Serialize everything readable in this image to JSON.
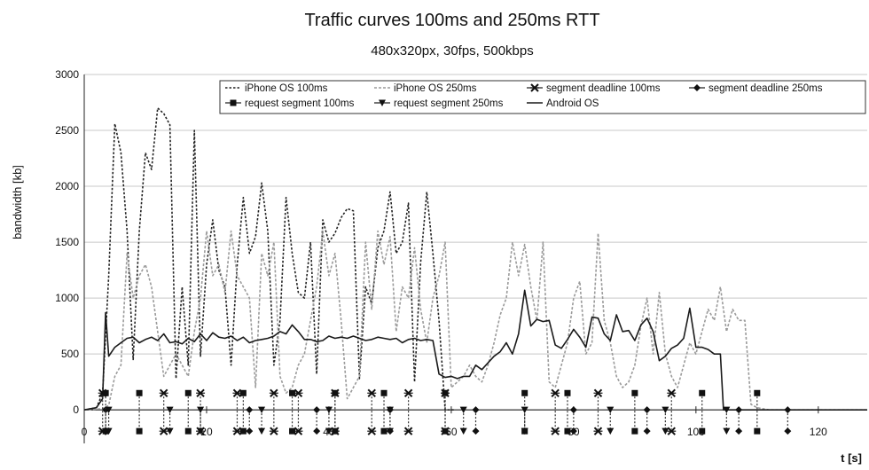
{
  "chart_data": {
    "type": "line",
    "title": "Traffic curves 100ms and 250ms RTT",
    "subtitle": "480x320px, 30fps, 500kbps",
    "xlabel": "t [s]",
    "ylabel": "bandwidth [kb]",
    "xlim": [
      0,
      128
    ],
    "ylim": [
      -300,
      3000
    ],
    "xticks": [
      0,
      20,
      40,
      60,
      80,
      100,
      120
    ],
    "yticks": [
      0,
      500,
      1000,
      1500,
      2000,
      2500,
      3000
    ],
    "ytick_labels": [
      "0",
      "500",
      "1000",
      "1500",
      "2000",
      "2500",
      "3000"
    ],
    "xtick_labels": [
      "0",
      "20",
      "40",
      "60",
      "80",
      "100",
      "120"
    ],
    "grid": "horizontal",
    "legend_position": "top-right",
    "series": [
      {
        "name": "iPhone OS 100ms",
        "style": "dotted-dark",
        "color": "#222222",
        "x": [
          0,
          2,
          3,
          4,
          5,
          6,
          7,
          8,
          9,
          10,
          11,
          12,
          13,
          14,
          15,
          16,
          17,
          18,
          19,
          20,
          21,
          22,
          23,
          24,
          25,
          26,
          27,
          28,
          29,
          30,
          31,
          32,
          33,
          34,
          35,
          36,
          37,
          38,
          39,
          40,
          41,
          42,
          43,
          44,
          45,
          46,
          47,
          48,
          49,
          50,
          51,
          52,
          53,
          54,
          55,
          56,
          57,
          58,
          59,
          60,
          60.5
        ],
        "y": [
          0,
          20,
          150,
          1200,
          2560,
          2300,
          1600,
          450,
          1600,
          2300,
          2150,
          2700,
          2650,
          2550,
          280,
          1100,
          400,
          2500,
          480,
          1300,
          1700,
          1250,
          1100,
          400,
          1300,
          1900,
          1400,
          1550,
          2030,
          1600,
          400,
          800,
          1900,
          1400,
          1050,
          1000,
          1500,
          320,
          1700,
          1500,
          1580,
          1720,
          1800,
          1780,
          280,
          1100,
          950,
          1450,
          1600,
          1950,
          1400,
          1500,
          1850,
          250,
          1320,
          1950,
          1400,
          800,
          0,
          0,
          0
        ]
      },
      {
        "name": "iPhone OS 250ms",
        "style": "dashed-gray",
        "color": "#9a9a9a",
        "x": [
          0,
          3,
          4,
          5,
          6,
          7,
          8,
          9,
          10,
          11,
          12,
          13,
          14,
          15,
          16,
          17,
          18,
          19,
          20,
          21,
          22,
          23,
          24,
          25,
          26,
          27,
          28,
          29,
          30,
          31,
          32,
          33,
          34,
          35,
          36,
          37,
          38,
          39,
          40,
          41,
          42,
          43,
          44,
          45,
          46,
          47,
          48,
          49,
          50,
          51,
          52,
          53,
          54,
          55,
          56,
          57,
          58,
          59,
          60,
          61,
          62,
          63,
          64,
          65,
          66,
          67,
          68,
          69,
          70,
          71,
          72,
          73,
          74,
          75,
          76,
          77,
          78,
          79,
          80,
          81,
          82,
          83,
          84,
          85,
          86,
          87,
          88,
          89,
          90,
          91,
          92,
          93,
          94,
          95,
          96,
          97,
          98,
          99,
          100,
          101,
          102,
          103,
          104,
          105,
          106,
          107,
          108,
          109,
          110,
          112,
          116,
          120,
          128
        ],
        "y": [
          0,
          10,
          40,
          300,
          400,
          1400,
          1000,
          1200,
          1300,
          1100,
          700,
          300,
          400,
          500,
          400,
          300,
          700,
          1000,
          1600,
          1200,
          1300,
          1050,
          1600,
          1200,
          1100,
          1000,
          200,
          1400,
          1200,
          1500,
          300,
          150,
          200,
          400,
          500,
          800,
          1100,
          1600,
          1200,
          1400,
          800,
          100,
          200,
          300,
          1500,
          900,
          1600,
          1300,
          1550,
          700,
          1100,
          1000,
          1450,
          900,
          600,
          1000,
          1200,
          1500,
          200,
          250,
          300,
          400,
          300,
          250,
          400,
          600,
          850,
          1000,
          1500,
          1200,
          1480,
          1100,
          800,
          1500,
          250,
          200,
          400,
          600,
          1000,
          1150,
          500,
          600,
          1580,
          800,
          600,
          300,
          200,
          250,
          400,
          750,
          1000,
          500,
          1050,
          500,
          300,
          200,
          400,
          600,
          500,
          700,
          900,
          800,
          1100,
          700,
          900,
          800,
          800,
          50,
          20,
          0,
          0,
          0,
          0
        ]
      },
      {
        "name": "segment deadline 100ms",
        "style": "marker-bowtie",
        "color": "#111111",
        "x": [
          3,
          13,
          19,
          25,
          31,
          35,
          41,
          47,
          53,
          59,
          77,
          84,
          96
        ],
        "y": [
          150,
          150,
          150,
          150,
          150,
          150,
          150,
          150,
          150,
          150,
          150,
          150,
          150
        ]
      },
      {
        "name": "segment deadline 250ms",
        "style": "marker-diamond",
        "color": "#111111",
        "x": [
          3.5,
          27,
          38,
          50,
          64,
          80,
          92,
          107,
          115
        ],
        "y": [
          0,
          0,
          0,
          0,
          0,
          0,
          0,
          0,
          0
        ]
      },
      {
        "name": "request segment 100ms",
        "style": "marker-square",
        "color": "#111111",
        "x": [
          3.5,
          9,
          17,
          26,
          34,
          41,
          49,
          59,
          72,
          79,
          90,
          101,
          110
        ],
        "y": [
          150,
          150,
          150,
          150,
          150,
          150,
          150,
          150,
          150,
          150,
          150,
          150,
          150
        ]
      },
      {
        "name": "request segment 250ms",
        "style": "marker-triangle",
        "color": "#111111",
        "x": [
          4,
          14,
          19,
          29,
          40,
          50,
          62,
          72,
          86,
          95,
          105
        ],
        "y": [
          0,
          0,
          0,
          0,
          0,
          0,
          0,
          0,
          0,
          0,
          0
        ]
      },
      {
        "name": "Android OS",
        "style": "solid-dark",
        "color": "#1a1a1a",
        "x": [
          0,
          2,
          3,
          3.5,
          4,
          5,
          6,
          7,
          8,
          9,
          10,
          11,
          12,
          13,
          14,
          15,
          16,
          17,
          18,
          19,
          20,
          21,
          22,
          23,
          24,
          25,
          26,
          27,
          28,
          29,
          30,
          31,
          32,
          33,
          34,
          35,
          36,
          37,
          38,
          39,
          40,
          41,
          42,
          43,
          44,
          45,
          46,
          47,
          48,
          49,
          50,
          51,
          52,
          53,
          54,
          55,
          56,
          57,
          58,
          59,
          60,
          61,
          62,
          63,
          64,
          65,
          66,
          67,
          68,
          69,
          70,
          71,
          72,
          73,
          74,
          75,
          76,
          77,
          78,
          79,
          80,
          81,
          82,
          83,
          84,
          85,
          86,
          87,
          88,
          89,
          90,
          91,
          92,
          93,
          94,
          95,
          96,
          97,
          98,
          99,
          100,
          101,
          102,
          103,
          104,
          104.5,
          128
        ],
        "y": [
          0,
          20,
          100,
          870,
          480,
          560,
          600,
          640,
          650,
          600,
          630,
          650,
          620,
          680,
          600,
          610,
          590,
          640,
          610,
          680,
          620,
          690,
          650,
          640,
          660,
          620,
          650,
          600,
          620,
          630,
          640,
          660,
          700,
          680,
          760,
          700,
          630,
          630,
          610,
          620,
          660,
          640,
          650,
          640,
          660,
          640,
          620,
          630,
          650,
          640,
          630,
          640,
          600,
          630,
          640,
          620,
          630,
          620,
          320,
          290,
          300,
          280,
          300,
          300,
          400,
          360,
          420,
          480,
          520,
          600,
          500,
          680,
          1070,
          750,
          810,
          790,
          800,
          580,
          550,
          630,
          720,
          650,
          560,
          830,
          820,
          680,
          620,
          850,
          700,
          710,
          620,
          760,
          820,
          700,
          440,
          480,
          550,
          580,
          640,
          910,
          560,
          560,
          540,
          500,
          500,
          0,
          0
        ]
      }
    ]
  }
}
